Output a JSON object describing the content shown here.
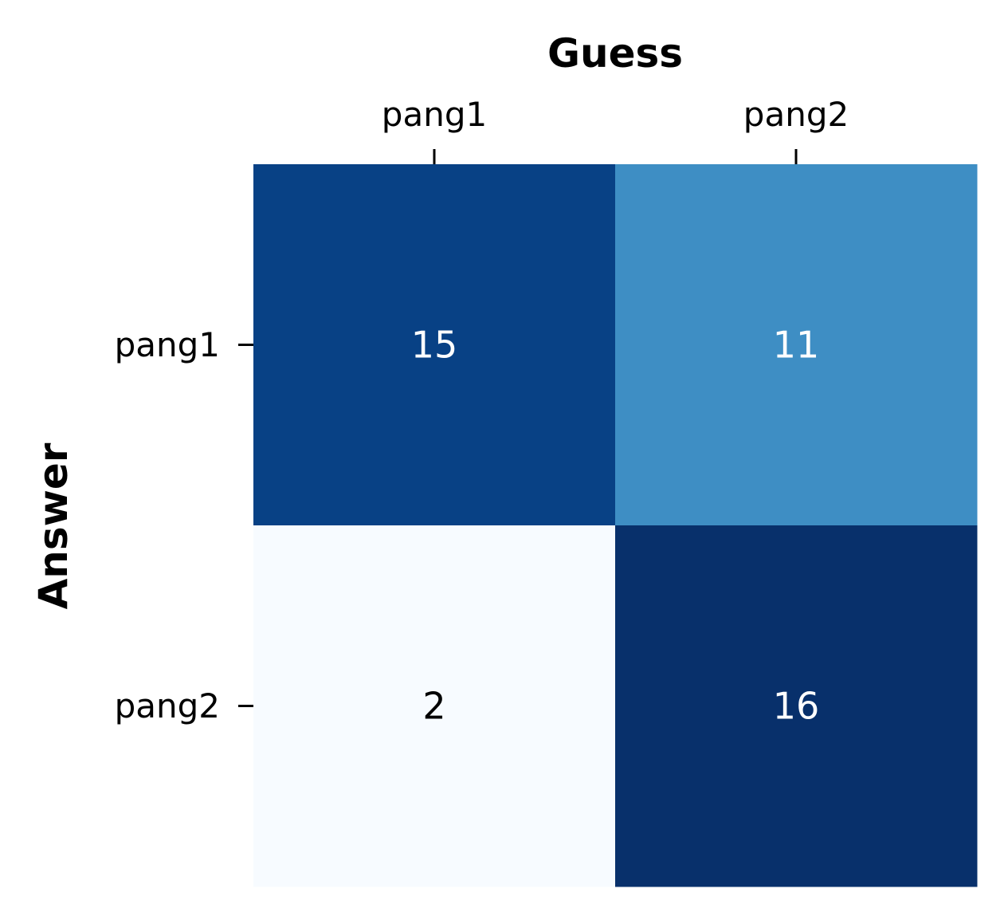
{
  "chart_data": {
    "type": "heatmap",
    "xlabel": "Guess",
    "ylabel": "Answer",
    "x_categories": [
      "pang1",
      "pang2"
    ],
    "y_categories": [
      "pang1",
      "pang2"
    ],
    "values": [
      [
        15,
        11
      ],
      [
        2,
        16
      ]
    ],
    "colormap": "Blues",
    "vmin": 2,
    "vmax": 16,
    "annotated": true,
    "colorbar": false,
    "x_tick_position": "top",
    "cell_colors": [
      [
        "#084185",
        "#3e8ec4"
      ],
      [
        "#f7fbff",
        "#08306b"
      ]
    ],
    "label_colors": {
      "dark_cell_text": "#ffffff",
      "light_cell_text": "#000000"
    }
  }
}
